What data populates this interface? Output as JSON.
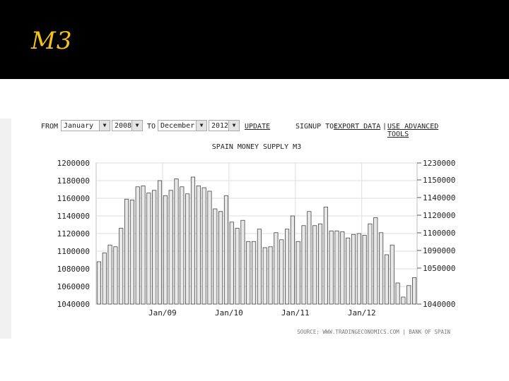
{
  "slide": {
    "title": "M3"
  },
  "controls": {
    "from_label": "FROM",
    "from_month": "January",
    "from_year": "2008",
    "to_label": "TO",
    "to_month": "December",
    "to_year": "2012",
    "update": "UPDATE",
    "signup": "SIGNUP TO:",
    "export": "EXPORT DATA",
    "separator": "|",
    "advanced": "USE ADVANCED TOOLS"
  },
  "chart_data": {
    "type": "bar",
    "title": "SPAIN MONEY SUPPLY M3",
    "source": "SOURCE: WWW.TRADINGECONOMICS.COM | BANK OF SPAIN",
    "xlabel": "",
    "ylabel": "",
    "ylim": [
      1040000,
      1200000
    ],
    "yticks": [
      "1200000",
      "1180000",
      "1160000",
      "1140000",
      "1120000",
      "1100000",
      "1080000",
      "1060000",
      "1040000"
    ],
    "y2lim": [
      1040000,
      1230000
    ],
    "y2ticks": [
      "1230000",
      "1150000",
      "1140000",
      "1120000",
      "1100000",
      "1090000",
      "1050000",
      "1040000"
    ],
    "xticks": [
      {
        "label": "Jan/09",
        "index": 12
      },
      {
        "label": "Jan/10",
        "index": 24
      },
      {
        "label": "Jan/11",
        "index": 36
      },
      {
        "label": "Jan/12",
        "index": 48
      }
    ],
    "grid": true,
    "bar_color": "#e8e8e8",
    "bar_stroke": "#444444",
    "values": [
      1088000,
      1098000,
      1107000,
      1105000,
      1126000,
      1159000,
      1158000,
      1173000,
      1174000,
      1166000,
      1169000,
      1180000,
      1163000,
      1169000,
      1182000,
      1173000,
      1165000,
      1184000,
      1174000,
      1172000,
      1168000,
      1148000,
      1145000,
      1163000,
      1133000,
      1126000,
      1135000,
      1111000,
      1111000,
      1125000,
      1104000,
      1105000,
      1121000,
      1113000,
      1125000,
      1140000,
      1111000,
      1129000,
      1145000,
      1129000,
      1131000,
      1150000,
      1123000,
      1123000,
      1122000,
      1115000,
      1119000,
      1120000,
      1118000,
      1131000,
      1138000,
      1121000,
      1096000,
      1107000,
      1064000,
      1048000,
      1061000,
      1070000
    ]
  }
}
